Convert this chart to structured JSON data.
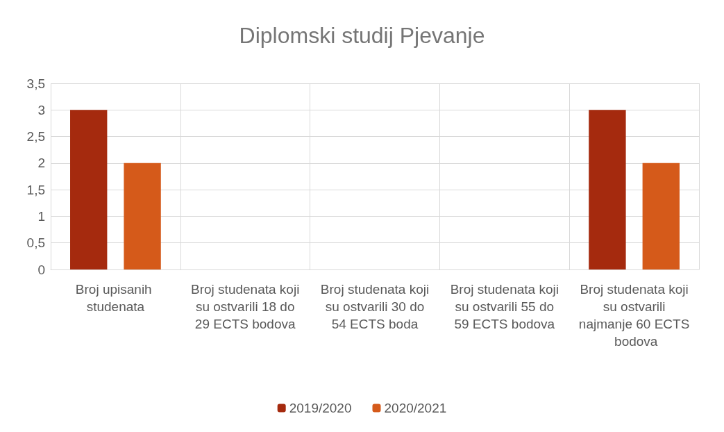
{
  "chart_data": {
    "type": "bar",
    "title": "Diplomski studij Pjevanje",
    "categories": [
      "Broj upisanih studenata",
      "Broj studenata koji su ostvarili 18 do 29 ECTS bodova",
      "Broj studenata koji su ostvarili 30 do 54 ECTS boda",
      "Broj studenata koji su ostvarili 55 do 59 ECTS bodova",
      "Broj studenata koji su ostvarili najmanje 60 ECTS bodova"
    ],
    "series": [
      {
        "name": "2019/2020",
        "color": "#a52a0e",
        "values": [
          3,
          0,
          0,
          0,
          3
        ]
      },
      {
        "name": "2020/2021",
        "color": "#d55a1a",
        "values": [
          2,
          0,
          0,
          0,
          2
        ]
      }
    ],
    "ylim": [
      0,
      3.5
    ],
    "yticks": [
      0,
      {
        "value": 0.5,
        "label": "0,5"
      },
      1,
      {
        "value": 1.5,
        "label": "1,5"
      },
      2,
      {
        "value": 2.5,
        "label": "2,5"
      },
      3,
      {
        "value": 3.5,
        "label": "3,5"
      }
    ],
    "grid": true,
    "legend": "bottom"
  }
}
